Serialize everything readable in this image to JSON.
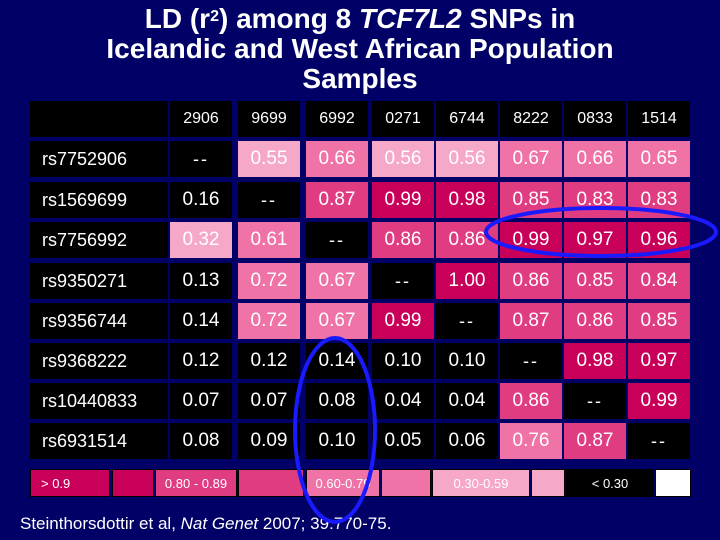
{
  "title": {
    "line1_pre": "LD (r",
    "line1_sup": "2",
    "line1_mid": ") among 8 ",
    "line1_italic": "TCF7L2",
    "line1_post": " SNPs in",
    "line2": "Icelandic and West African Population",
    "line3": "Samples"
  },
  "columns": [
    "2906",
    "9699",
    "6992",
    "0271",
    "6744",
    "8222",
    "0833",
    "1514"
  ],
  "rows": [
    {
      "snp": "rs7752906",
      "values": [
        "--",
        "0.55",
        "0.66",
        "0.56",
        "0.56",
        "0.67",
        "0.66",
        "0.65"
      ]
    },
    {
      "snp": "rs1569699",
      "values": [
        "0.16",
        "--",
        "0.87",
        "0.99",
        "0.98",
        "0.85",
        "0.83",
        "0.83"
      ]
    },
    {
      "snp": "rs7756992",
      "values": [
        "0.32",
        "0.61",
        "--",
        "0.86",
        "0.86",
        "0.99",
        "0.97",
        "0.96"
      ]
    },
    {
      "snp": "rs9350271",
      "values": [
        "0.13",
        "0.72",
        "0.67",
        "--",
        "1.00",
        "0.86",
        "0.85",
        "0.84"
      ]
    },
    {
      "snp": "rs9356744",
      "values": [
        "0.14",
        "0.72",
        "0.67",
        "0.99",
        "--",
        "0.87",
        "0.86",
        "0.85"
      ]
    },
    {
      "snp": "rs9368222",
      "values": [
        "0.12",
        "0.12",
        "0.14",
        "0.10",
        "0.10",
        "--",
        "0.98",
        "0.97"
      ]
    },
    {
      "snp": "rs10440833",
      "values": [
        "0.07",
        "0.07",
        "0.08",
        "0.04",
        "0.04",
        "0.86",
        "--",
        "0.99"
      ]
    },
    {
      "snp": "rs6931514",
      "values": [
        "0.08",
        "0.09",
        "0.10",
        "0.05",
        "0.06",
        "0.76",
        "0.87",
        "--"
      ]
    }
  ],
  "colors": {
    "background": "#000066",
    "header_bg": "#000000",
    "band_0_9": "#c8005a",
    "band_0_8": "#e03c82",
    "band_0_6": "#ef73a6",
    "band_0_3": "#f5a8c8",
    "band_lt_0_3": "#000000",
    "circle": "#1a1aff"
  },
  "legend": [
    {
      "label": "> 0.9",
      "band": "band_0_9"
    },
    {
      "label": "0.80 - 0.89",
      "band": "band_0_8"
    },
    {
      "label": "0.60-0.79",
      "band": "band_0_6"
    },
    {
      "label": "0.30-0.59",
      "band": "band_0_3"
    },
    {
      "label": "< 0.30",
      "band": "band_lt_0_3"
    }
  ],
  "citation": {
    "pre": "Steinthorsdottir et al, ",
    "italic": "Nat Genet",
    "post": " 2007; 39:770-75."
  }
}
